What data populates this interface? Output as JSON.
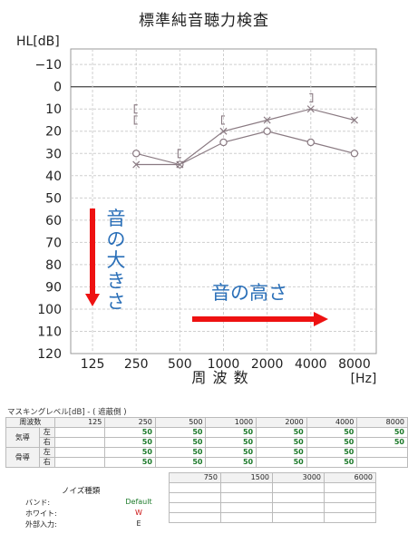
{
  "title": "標準純音聴力検査",
  "chart_data": {
    "type": "line",
    "ylabel": "HL[dB]",
    "xlabel": "周 波 数",
    "x_unit": "[Hz]",
    "x_ticks": [
      "125",
      "250",
      "500",
      "1000",
      "2000",
      "4000",
      "8000"
    ],
    "y_ticks": [
      -10,
      0,
      10,
      20,
      30,
      40,
      50,
      60,
      70,
      80,
      90,
      100,
      110,
      120
    ],
    "y_tick_labels": [
      "−10",
      "0",
      "10",
      "20",
      "30",
      "40",
      "50",
      "60",
      "70",
      "80",
      "90",
      "100",
      "110",
      "120"
    ],
    "ylim": [
      -17,
      120
    ],
    "y_inverted": true,
    "grid": true,
    "series": [
      {
        "marker": "circle",
        "x": [
          "250",
          "500",
          "1000",
          "2000",
          "4000",
          "8000"
        ],
        "values": [
          30,
          35,
          25,
          20,
          25,
          30
        ]
      },
      {
        "marker": "cross",
        "x": [
          "250",
          "500",
          "1000",
          "2000",
          "4000",
          "8000"
        ],
        "values": [
          35,
          35,
          20,
          15,
          10,
          15
        ]
      }
    ],
    "bone_conduction": {
      "left_bracket": [
        {
          "x": "250",
          "values": [
            10,
            15
          ]
        },
        {
          "x": "500",
          "values": [
            30
          ]
        },
        {
          "x": "1000",
          "values": [
            15
          ]
        }
      ],
      "right_bracket": [
        {
          "x": "4000",
          "values": [
            5
          ]
        }
      ]
    },
    "annotations": {
      "vertical_arrow_label": [
        "音",
        "の",
        "大",
        "き",
        "さ"
      ],
      "horizontal_arrow_label": "音の高さ"
    },
    "colors": {
      "series": "#8a7a82",
      "arrow": "#ee1111",
      "annotation_text": "#2a6fb8",
      "grid": "#cfcfcf",
      "zero_line": "#555555"
    }
  },
  "masking": {
    "caption": "マスキングレベル[dB] - ( 遮蔽側 )",
    "corner_label": "周波数",
    "freqs": [
      "125",
      "250",
      "500",
      "1000",
      "2000",
      "4000",
      "8000"
    ],
    "rows": [
      {
        "group": "気導",
        "side": "左",
        "values": [
          "",
          "50",
          "50",
          "50",
          "50",
          "50",
          "50"
        ]
      },
      {
        "group": "",
        "side": "右",
        "values": [
          "",
          "50",
          "50",
          "50",
          "50",
          "50",
          "50"
        ]
      },
      {
        "group": "骨導",
        "side": "左",
        "values": [
          "",
          "50",
          "50",
          "50",
          "50",
          "50",
          ""
        ]
      },
      {
        "group": "",
        "side": "右",
        "values": [
          "",
          "50",
          "50",
          "50",
          "50",
          "50",
          ""
        ]
      }
    ],
    "freqs2": [
      "750",
      "1500",
      "3000",
      "6000"
    ]
  },
  "noise": {
    "title": "ノイズ種類",
    "items": [
      {
        "label": "バンド:",
        "value": "Default",
        "color": "#1c7a2a"
      },
      {
        "label": "ホワイト:",
        "value": "W",
        "color": "#cc1111"
      },
      {
        "label": "外部入力:",
        "value": "E",
        "color": "#222222"
      }
    ]
  }
}
